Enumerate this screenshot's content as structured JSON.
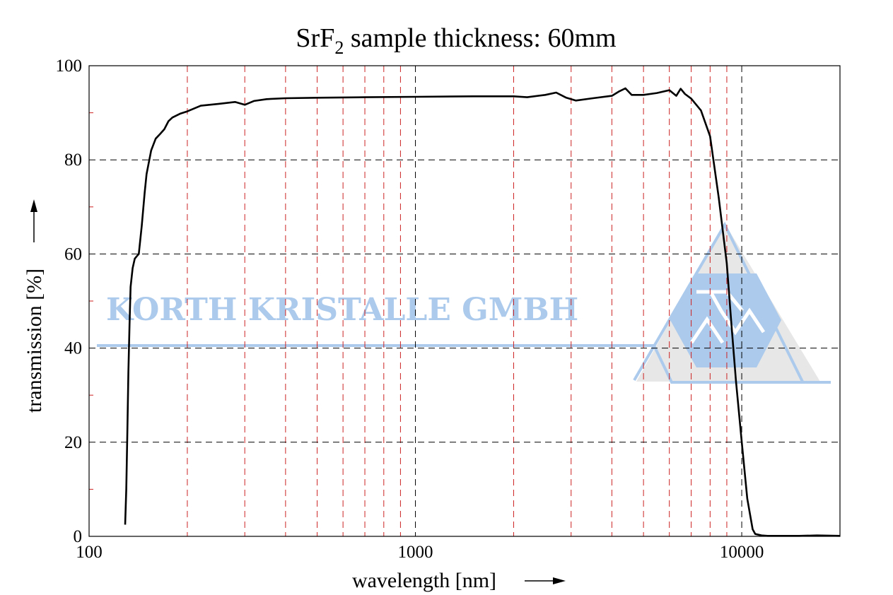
{
  "chart_data": {
    "type": "line",
    "title": {
      "prefix": "SrF",
      "subscript": "2",
      "suffix": " sample thickness: 60mm"
    },
    "xlabel": "wavelength [nm]",
    "ylabel": "transmission [%]",
    "xscale": "log",
    "xlim": [
      100,
      20000
    ],
    "ylim": [
      0,
      100
    ],
    "xticks": [
      {
        "value": 100,
        "label": "100"
      },
      {
        "value": 1000,
        "label": "1000"
      },
      {
        "value": 10000,
        "label": "10000"
      }
    ],
    "yticks": [
      {
        "value": 0,
        "label": "0"
      },
      {
        "value": 20,
        "label": "20"
      },
      {
        "value": 40,
        "label": "40"
      },
      {
        "value": 60,
        "label": "60"
      },
      {
        "value": 80,
        "label": "80"
      },
      {
        "value": 100,
        "label": "100"
      }
    ],
    "major_gridlines_x": [
      1000,
      10000
    ],
    "major_gridlines_y": [
      20,
      40,
      60,
      80
    ],
    "minor_gridlines_x": [
      200,
      300,
      400,
      500,
      600,
      700,
      800,
      900,
      2000,
      3000,
      4000,
      5000,
      6000,
      7000,
      8000,
      9000
    ],
    "grid": true,
    "colors": {
      "curve": "#000000",
      "major_grid": "#000000",
      "minor_grid": "#cc2222",
      "watermark": "#a7c8ec",
      "watermark_bg": "#e6e6e6"
    },
    "series": [
      {
        "x": [
          129,
          130,
          131,
          132,
          133,
          134,
          136,
          138,
          140,
          142,
          145,
          148,
          150,
          155,
          160,
          165,
          170,
          175,
          180,
          190,
          200,
          220,
          250,
          280,
          300,
          320,
          350,
          400,
          500,
          700,
          1000,
          1500,
          2000,
          2200,
          2500,
          2700,
          2900,
          3100,
          3500,
          4000,
          4200,
          4400,
          4600,
          5000,
          5500,
          6000,
          6300,
          6500,
          6700,
          7000,
          7500,
          8000,
          8500,
          9000,
          9300,
          9600,
          10000,
          10400,
          10800,
          11000,
          11500,
          12000,
          13000,
          15000,
          17000,
          20000
        ],
        "y": [
          2.5,
          10,
          22,
          35,
          45,
          53,
          57,
          59,
          59.5,
          60,
          66,
          73,
          77,
          82,
          84.5,
          85.5,
          86.5,
          88.2,
          89,
          89.8,
          90.3,
          91.5,
          91.9,
          92.3,
          91.7,
          92.5,
          92.9,
          93.1,
          93.2,
          93.3,
          93.4,
          93.5,
          93.5,
          93.3,
          93.8,
          94.3,
          93.2,
          92.6,
          93.1,
          93.6,
          94.5,
          95.2,
          93.8,
          93.8,
          94.2,
          94.8,
          93.6,
          95.1,
          94,
          93,
          90.5,
          85,
          72,
          58,
          45,
          33,
          20,
          8,
          1.5,
          0.5,
          0.2,
          0.1,
          0.1,
          0.1,
          0.2,
          0.1
        ]
      }
    ]
  },
  "watermark": {
    "text": "KORTH KRISTALLE GMBH"
  }
}
